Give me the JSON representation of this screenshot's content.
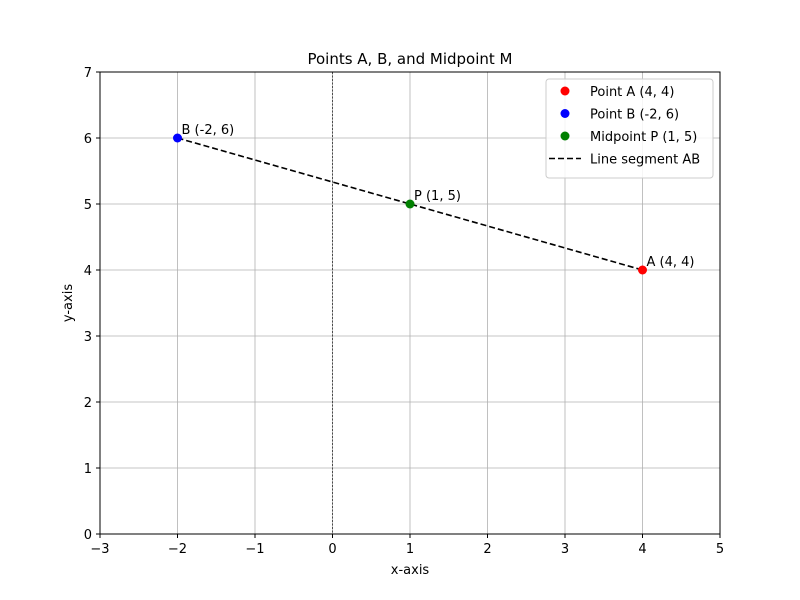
{
  "chart_data": {
    "type": "scatter",
    "title": "Points A, B, and Midpoint M",
    "xlabel": "x-axis",
    "ylabel": "y-axis",
    "xlim": [
      -3,
      5
    ],
    "ylim": [
      0,
      7
    ],
    "xticks": [
      -3,
      -2,
      -1,
      0,
      1,
      2,
      3,
      4,
      5
    ],
    "yticks": [
      0,
      1,
      2,
      3,
      4,
      5,
      6,
      7
    ],
    "xtick_labels": [
      "−3",
      "−2",
      "−1",
      "0",
      "1",
      "2",
      "3",
      "4",
      "5"
    ],
    "ytick_labels": [
      "0",
      "1",
      "2",
      "3",
      "4",
      "5",
      "6",
      "7"
    ],
    "grid": true,
    "zero_line_x": 0,
    "legend_position": "top-right",
    "points": [
      {
        "name": "Point A (4, 4)",
        "label": "A (4, 4)",
        "x": 4,
        "y": 4,
        "color": "#ff0000"
      },
      {
        "name": "Point B (-2, 6)",
        "label": "B (-2, 6)",
        "x": -2,
        "y": 6,
        "color": "#0000ff"
      },
      {
        "name": "Midpoint P (1, 5)",
        "label": "P (1, 5)",
        "x": 1,
        "y": 5,
        "color": "#008000"
      }
    ],
    "segments": [
      {
        "name": "Line segment AB",
        "x": [
          -2,
          4
        ],
        "y": [
          6,
          4
        ],
        "color": "#000000",
        "style": "dashed"
      }
    ]
  }
}
